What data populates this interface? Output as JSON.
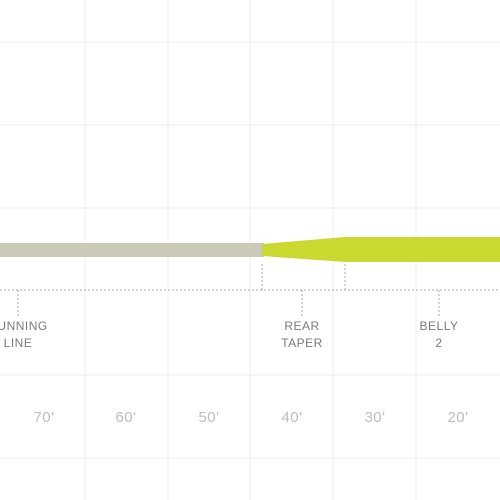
{
  "sections": [
    {
      "line1": "RUNNING",
      "line2": "LINE"
    },
    {
      "line1": "REAR",
      "line2": "TAPER"
    },
    {
      "line1": "BELLY",
      "line2": "2"
    }
  ],
  "scale": [
    "70'",
    "60'",
    "50'",
    "40'",
    "30'",
    "20'"
  ]
}
